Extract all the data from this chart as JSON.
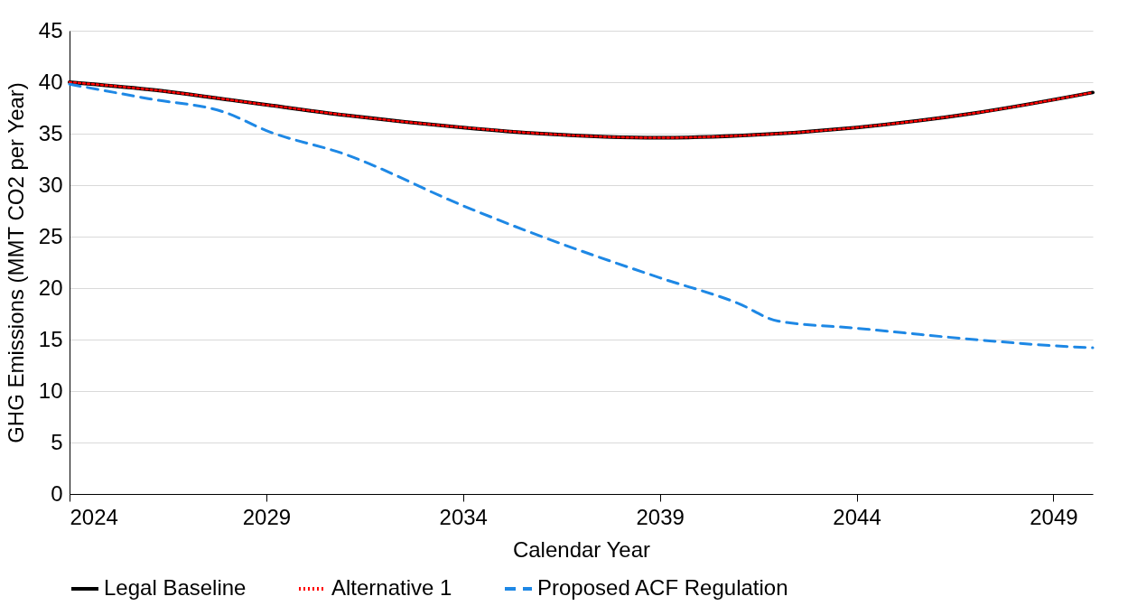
{
  "chart_data": {
    "type": "line",
    "xlabel": "Calendar Year",
    "ylabel": "GHG Emissions (MMT CO2 per Year)",
    "xlim": [
      2024,
      2050
    ],
    "xticks": [
      2024,
      2029,
      2034,
      2039,
      2044,
      2049
    ],
    "ylim": [
      0,
      45
    ],
    "yticks": [
      0,
      5,
      10,
      15,
      20,
      25,
      30,
      35,
      40,
      45
    ],
    "grid": "y",
    "legend": "bottom",
    "marker": "none",
    "series": [
      {
        "name": "Legal Baseline",
        "color": "#000000",
        "line_style": "solid",
        "x": [
          2024,
          2026,
          2029,
          2031,
          2034,
          2036,
          2039,
          2041,
          2044,
          2047,
          2050
        ],
        "values": [
          40,
          39.3,
          37.8,
          36.8,
          35.6,
          35,
          34.6,
          34.8,
          35.6,
          37,
          39
        ]
      },
      {
        "name": "Alternative 1",
        "color": "#ff0000",
        "line_style": "dotted",
        "x": [
          2024,
          2026,
          2029,
          2031,
          2034,
          2036,
          2039,
          2041,
          2044,
          2047,
          2050
        ],
        "values": [
          40,
          39.3,
          37.8,
          36.8,
          35.6,
          35,
          34.6,
          34.8,
          35.6,
          37,
          39
        ]
      },
      {
        "name": "Proposed ACF Regulation",
        "color": "#1e88e5",
        "line_style": "dashed",
        "x": [
          2024,
          2026,
          2028,
          2029,
          2031,
          2034,
          2036,
          2039,
          2041,
          2042,
          2044,
          2047,
          2049,
          2050
        ],
        "values": [
          39.8,
          38.4,
          37,
          35.3,
          33,
          28,
          25,
          21,
          18.5,
          16.8,
          16.1,
          15,
          14.4,
          14.2
        ]
      }
    ]
  }
}
